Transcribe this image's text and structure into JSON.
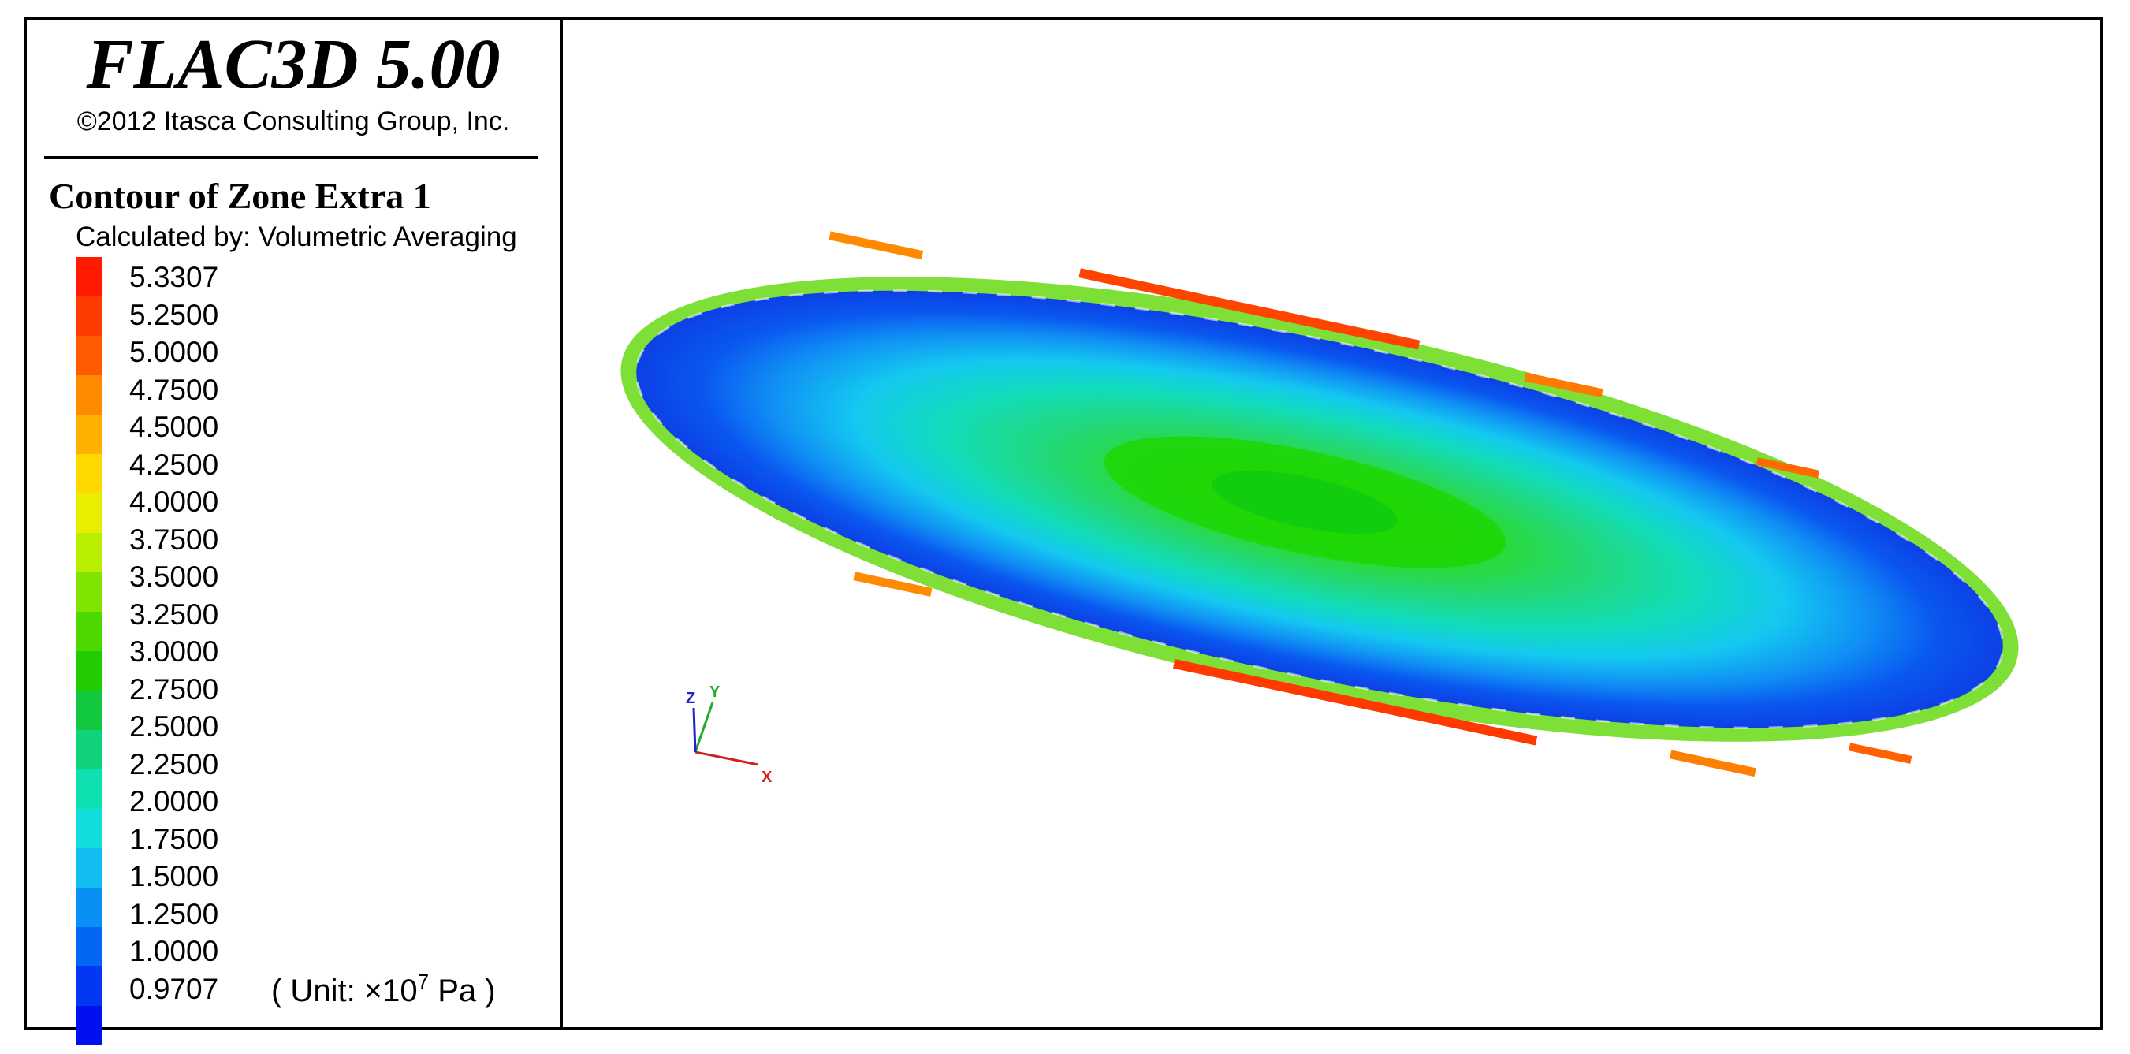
{
  "header": {
    "title": "FLAC3D 5.00",
    "copyright": "©2012 Itasca Consulting Group, Inc."
  },
  "legend": {
    "title": "Contour of Zone Extra 1",
    "calculation": "Calculated by: Volumetric Averaging",
    "levels": [
      "5.3307",
      "5.2500",
      "5.0000",
      "4.7500",
      "4.5000",
      "4.2500",
      "4.0000",
      "3.7500",
      "3.5000",
      "3.2500",
      "3.0000",
      "2.7500",
      "2.5000",
      "2.2500",
      "2.0000",
      "1.7500",
      "1.5000",
      "1.2500",
      "1.0000",
      "0.9707"
    ],
    "swatch_colors": [
      "#ff1a00",
      "#ff3b00",
      "#ff5a00",
      "#ff8a00",
      "#ffb000",
      "#ffd800",
      "#e8ee00",
      "#b8ee00",
      "#80e400",
      "#4ed800",
      "#22cc00",
      "#12c83e",
      "#10d27a",
      "#0ee0b0",
      "#12dcdc",
      "#10bcf0",
      "#0890f4",
      "#0466f4",
      "#0238f4",
      "#0010f0"
    ],
    "unit_prefix": "( Unit: ×10",
    "unit_exponent": "7",
    "unit_suffix": " Pa )"
  },
  "axes_triad": {
    "x": "X",
    "y": "Y",
    "z": "Z"
  },
  "colors": {
    "x_axis": "#cc2222",
    "y_axis": "#22aa22",
    "z_axis": "#2222cc"
  }
}
